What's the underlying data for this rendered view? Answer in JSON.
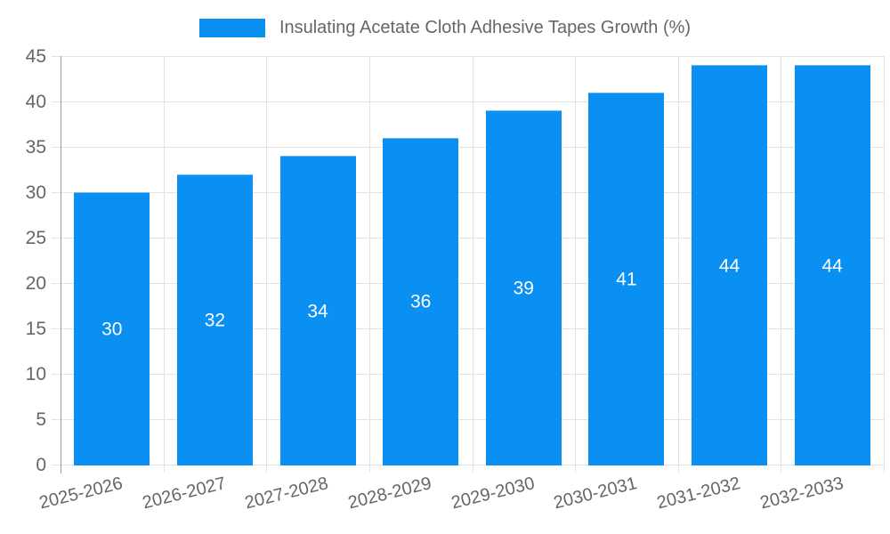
{
  "chart_data": {
    "type": "bar",
    "title": "",
    "legend_label": "Insulating Acetate Cloth Adhesive Tapes Growth (%)",
    "legend_position": "top",
    "categories": [
      "2025-2026",
      "2026-2027",
      "2027-2028",
      "2028-2029",
      "2029-2030",
      "2030-2031",
      "2031-2032",
      "2032-2033"
    ],
    "values": [
      30,
      32,
      34,
      36,
      39,
      41,
      44,
      44
    ],
    "xlabel": "",
    "ylabel": "",
    "ylim": [
      0,
      45
    ],
    "ytick_step": 5,
    "ytick_labels": [
      "0",
      "5",
      "10",
      "15",
      "20",
      "25",
      "30",
      "35",
      "40",
      "45"
    ],
    "grid": true,
    "bar_labels_inside": true,
    "colors": {
      "bar": "#0A8FF2",
      "grid": "#E2E2E2",
      "axis": "#999999",
      "tick_text": "#666666",
      "bar_label_text": "#FFFFFF",
      "background": "#FFFFFF"
    }
  }
}
